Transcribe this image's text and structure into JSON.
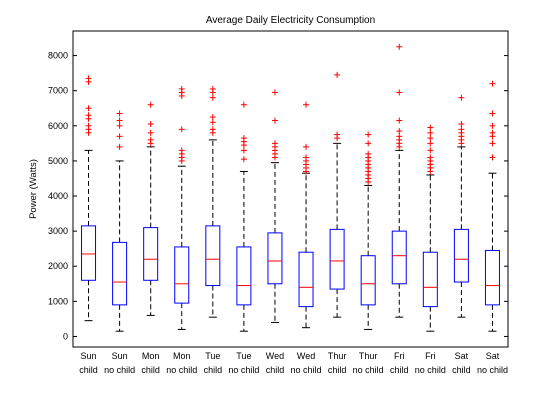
{
  "chart_data": {
    "type": "box",
    "title": "Average Daily Electricity Consumption",
    "xlabel": "",
    "ylabel": "Power (Watts)",
    "ylim": [
      -300,
      8700
    ],
    "yticks": [
      0,
      1000,
      2000,
      3000,
      4000,
      5000,
      6000,
      7000,
      8000
    ],
    "grid": false,
    "colors": {
      "box": "#0000ff",
      "median": "#ff0000",
      "whisker": "#000000",
      "outlier": "#ff0000"
    },
    "categories": [
      {
        "line1": "Sun",
        "line2": "child",
        "q1": 1600,
        "median": 2350,
        "q3": 3150,
        "low": 450,
        "high": 5300,
        "outliers": [
          5800,
          5900,
          6000,
          6200,
          6300,
          6500,
          7250,
          7350
        ]
      },
      {
        "line1": "Sun",
        "line2": "no child",
        "q1": 900,
        "median": 1550,
        "q3": 2680,
        "low": 150,
        "high": 5000,
        "outliers": [
          5400,
          5700,
          6000,
          6150,
          6350
        ]
      },
      {
        "line1": "Mon",
        "line2": "child",
        "q1": 1600,
        "median": 2200,
        "q3": 3100,
        "low": 600,
        "high": 5400,
        "outliers": [
          5500,
          5600,
          5800,
          6050,
          6600
        ]
      },
      {
        "line1": "Mon",
        "line2": "no child",
        "q1": 950,
        "median": 1500,
        "q3": 2550,
        "low": 200,
        "high": 4850,
        "outliers": [
          5000,
          5100,
          5200,
          5300,
          5900,
          6850,
          6950,
          7050
        ]
      },
      {
        "line1": "Tue",
        "line2": "child",
        "q1": 1450,
        "median": 2200,
        "q3": 3150,
        "low": 550,
        "high": 5600,
        "outliers": [
          5800,
          5900,
          6100,
          6250,
          6800,
          6950,
          7050
        ]
      },
      {
        "line1": "Tue",
        "line2": "no child",
        "q1": 900,
        "median": 1450,
        "q3": 2550,
        "low": 150,
        "high": 4700,
        "outliers": [
          5050,
          5300,
          5450,
          5550,
          5650,
          6600
        ]
      },
      {
        "line1": "Wed",
        "line2": "child",
        "q1": 1500,
        "median": 2150,
        "q3": 2950,
        "low": 400,
        "high": 4950,
        "outliers": [
          5100,
          5200,
          5300,
          5400,
          5500,
          6150,
          6950
        ]
      },
      {
        "line1": "Wed",
        "line2": "no child",
        "q1": 850,
        "median": 1400,
        "q3": 2400,
        "low": 250,
        "high": 4650,
        "outliers": [
          4700,
          4800,
          4900,
          5000,
          5100,
          5400,
          6600
        ]
      },
      {
        "line1": "Thur",
        "line2": "child",
        "q1": 1350,
        "median": 2150,
        "q3": 3050,
        "low": 550,
        "high": 5500,
        "outliers": [
          5650,
          5750,
          7450
        ]
      },
      {
        "line1": "Thur",
        "line2": "no child",
        "q1": 900,
        "median": 1500,
        "q3": 2300,
        "low": 200,
        "high": 4300,
        "outliers": [
          4400,
          4500,
          4600,
          4700,
          4800,
          4900,
          5000,
          5100,
          5200,
          5500,
          5750
        ]
      },
      {
        "line1": "Fri",
        "line2": "child",
        "q1": 1500,
        "median": 2300,
        "q3": 3000,
        "low": 550,
        "high": 5300,
        "outliers": [
          5400,
          5500,
          5600,
          5700,
          5850,
          6150,
          6950,
          8250
        ]
      },
      {
        "line1": "Fri",
        "line2": "no child",
        "q1": 850,
        "median": 1400,
        "q3": 2400,
        "low": 150,
        "high": 4600,
        "outliers": [
          4700,
          4800,
          4900,
          5000,
          5100,
          5300,
          5500,
          5650,
          5800,
          5950
        ]
      },
      {
        "line1": "Sat",
        "line2": "child",
        "q1": 1550,
        "median": 2200,
        "q3": 3050,
        "low": 550,
        "high": 5400,
        "outliers": [
          5500,
          5600,
          5700,
          5800,
          5900,
          6050,
          6800
        ]
      },
      {
        "line1": "Sat",
        "line2": "no child",
        "q1": 900,
        "median": 1450,
        "q3": 2450,
        "low": 150,
        "high": 4650,
        "outliers": [
          5100,
          5500,
          5700,
          5800,
          6000,
          6350,
          7200
        ]
      }
    ]
  }
}
